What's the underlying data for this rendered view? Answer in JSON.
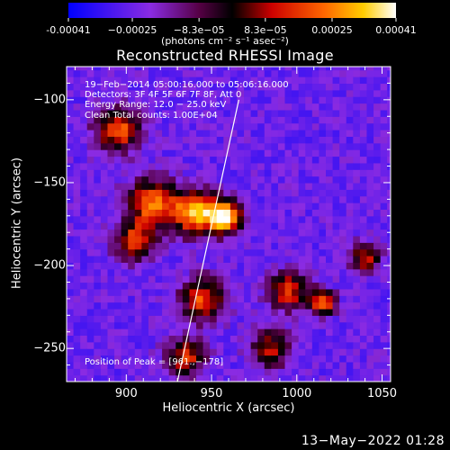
{
  "colorbar": {
    "ticks": [
      {
        "label": "-0.00041",
        "value": -0.00041
      },
      {
        "label": "−0.00025",
        "value": -0.00025
      },
      {
        "label": "−8.3e−05",
        "value": -8.3e-05
      },
      {
        "label": "8.3e−05",
        "value": 8.3e-05
      },
      {
        "label": "0.00025",
        "value": 0.00025
      },
      {
        "label": "0.00041",
        "value": 0.00041
      }
    ],
    "unit_label": "(photons cm⁻² s⁻¹ asec⁻²)",
    "range": [
      -0.00041,
      0.00041
    ]
  },
  "annotations": {
    "time": "19−Feb−2014 05:00:16.000 to 05:06:16.000",
    "detectors": "Detectors: 3F 4F 5F 6F 7F 8F, Att 0",
    "energy": "Energy Range: 12.0 − 25.0 keV",
    "clean": "Clean     Total counts: 1.00E+04",
    "peak": "Position of Peak = [961.,−178]"
  },
  "datestamp": "13−May−2022 01:28",
  "chart_data": {
    "type": "heatmap",
    "title": "Reconstructed RHESSI Image",
    "xlabel": "Heliocentric X (arcsec)",
    "ylabel": "Heliocentric Y (arcsec)",
    "xlim": [
      865,
      1055
    ],
    "ylim": [
      -270,
      -80
    ],
    "xticks": [
      900,
      950,
      1000,
      1050
    ],
    "yticks": [
      -250,
      -200,
      -150,
      -100
    ],
    "peak": {
      "x": 961,
      "y": -178
    },
    "limb_line": [
      {
        "x": 930,
        "y": -270
      },
      {
        "x": 966,
        "y": -100
      }
    ],
    "sources": [
      {
        "x": 958,
        "y": -170,
        "amp": 0.00041,
        "sigma": 7
      },
      {
        "x": 940,
        "y": -168,
        "amp": 0.00032,
        "sigma": 9
      },
      {
        "x": 915,
        "y": -162,
        "amp": 0.00024,
        "sigma": 10
      },
      {
        "x": 895,
        "y": -118,
        "amp": 0.00022,
        "sigma": 9
      },
      {
        "x": 905,
        "y": -185,
        "amp": 0.00018,
        "sigma": 8
      },
      {
        "x": 1015,
        "y": -222,
        "amp": 0.00028,
        "sigma": 5
      },
      {
        "x": 995,
        "y": -215,
        "amp": 0.00016,
        "sigma": 8
      },
      {
        "x": 945,
        "y": -220,
        "amp": 0.00018,
        "sigma": 9
      },
      {
        "x": 935,
        "y": -255,
        "amp": 0.00014,
        "sigma": 8
      },
      {
        "x": 1040,
        "y": -195,
        "amp": 0.00013,
        "sigma": 6
      },
      {
        "x": 985,
        "y": -250,
        "amp": 0.0001,
        "sigma": 8
      }
    ],
    "background": -0.00025
  }
}
